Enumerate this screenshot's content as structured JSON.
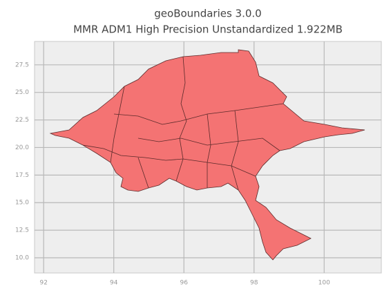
{
  "chart_data": {
    "type": "map",
    "title": "geoBoundaries 3.0.0",
    "subtitle": "MMR ADM1 High Precision Unstandardized 1.922MB",
    "xlim": [
      91.74,
      101.63
    ],
    "ylim": [
      8.62,
      29.62
    ],
    "xticks": [
      92,
      94,
      96,
      98,
      100
    ],
    "yticks": [
      {
        "value": 10,
        "label": "10.0"
      },
      12.5,
      {
        "value": 15,
        "label": "15.0"
      },
      17.5,
      {
        "value": 20,
        "label": "20.0"
      },
      22.5,
      {
        "value": 25,
        "label": "25.0"
      },
      27.5
    ],
    "grid": true,
    "color": "#f47373"
  }
}
